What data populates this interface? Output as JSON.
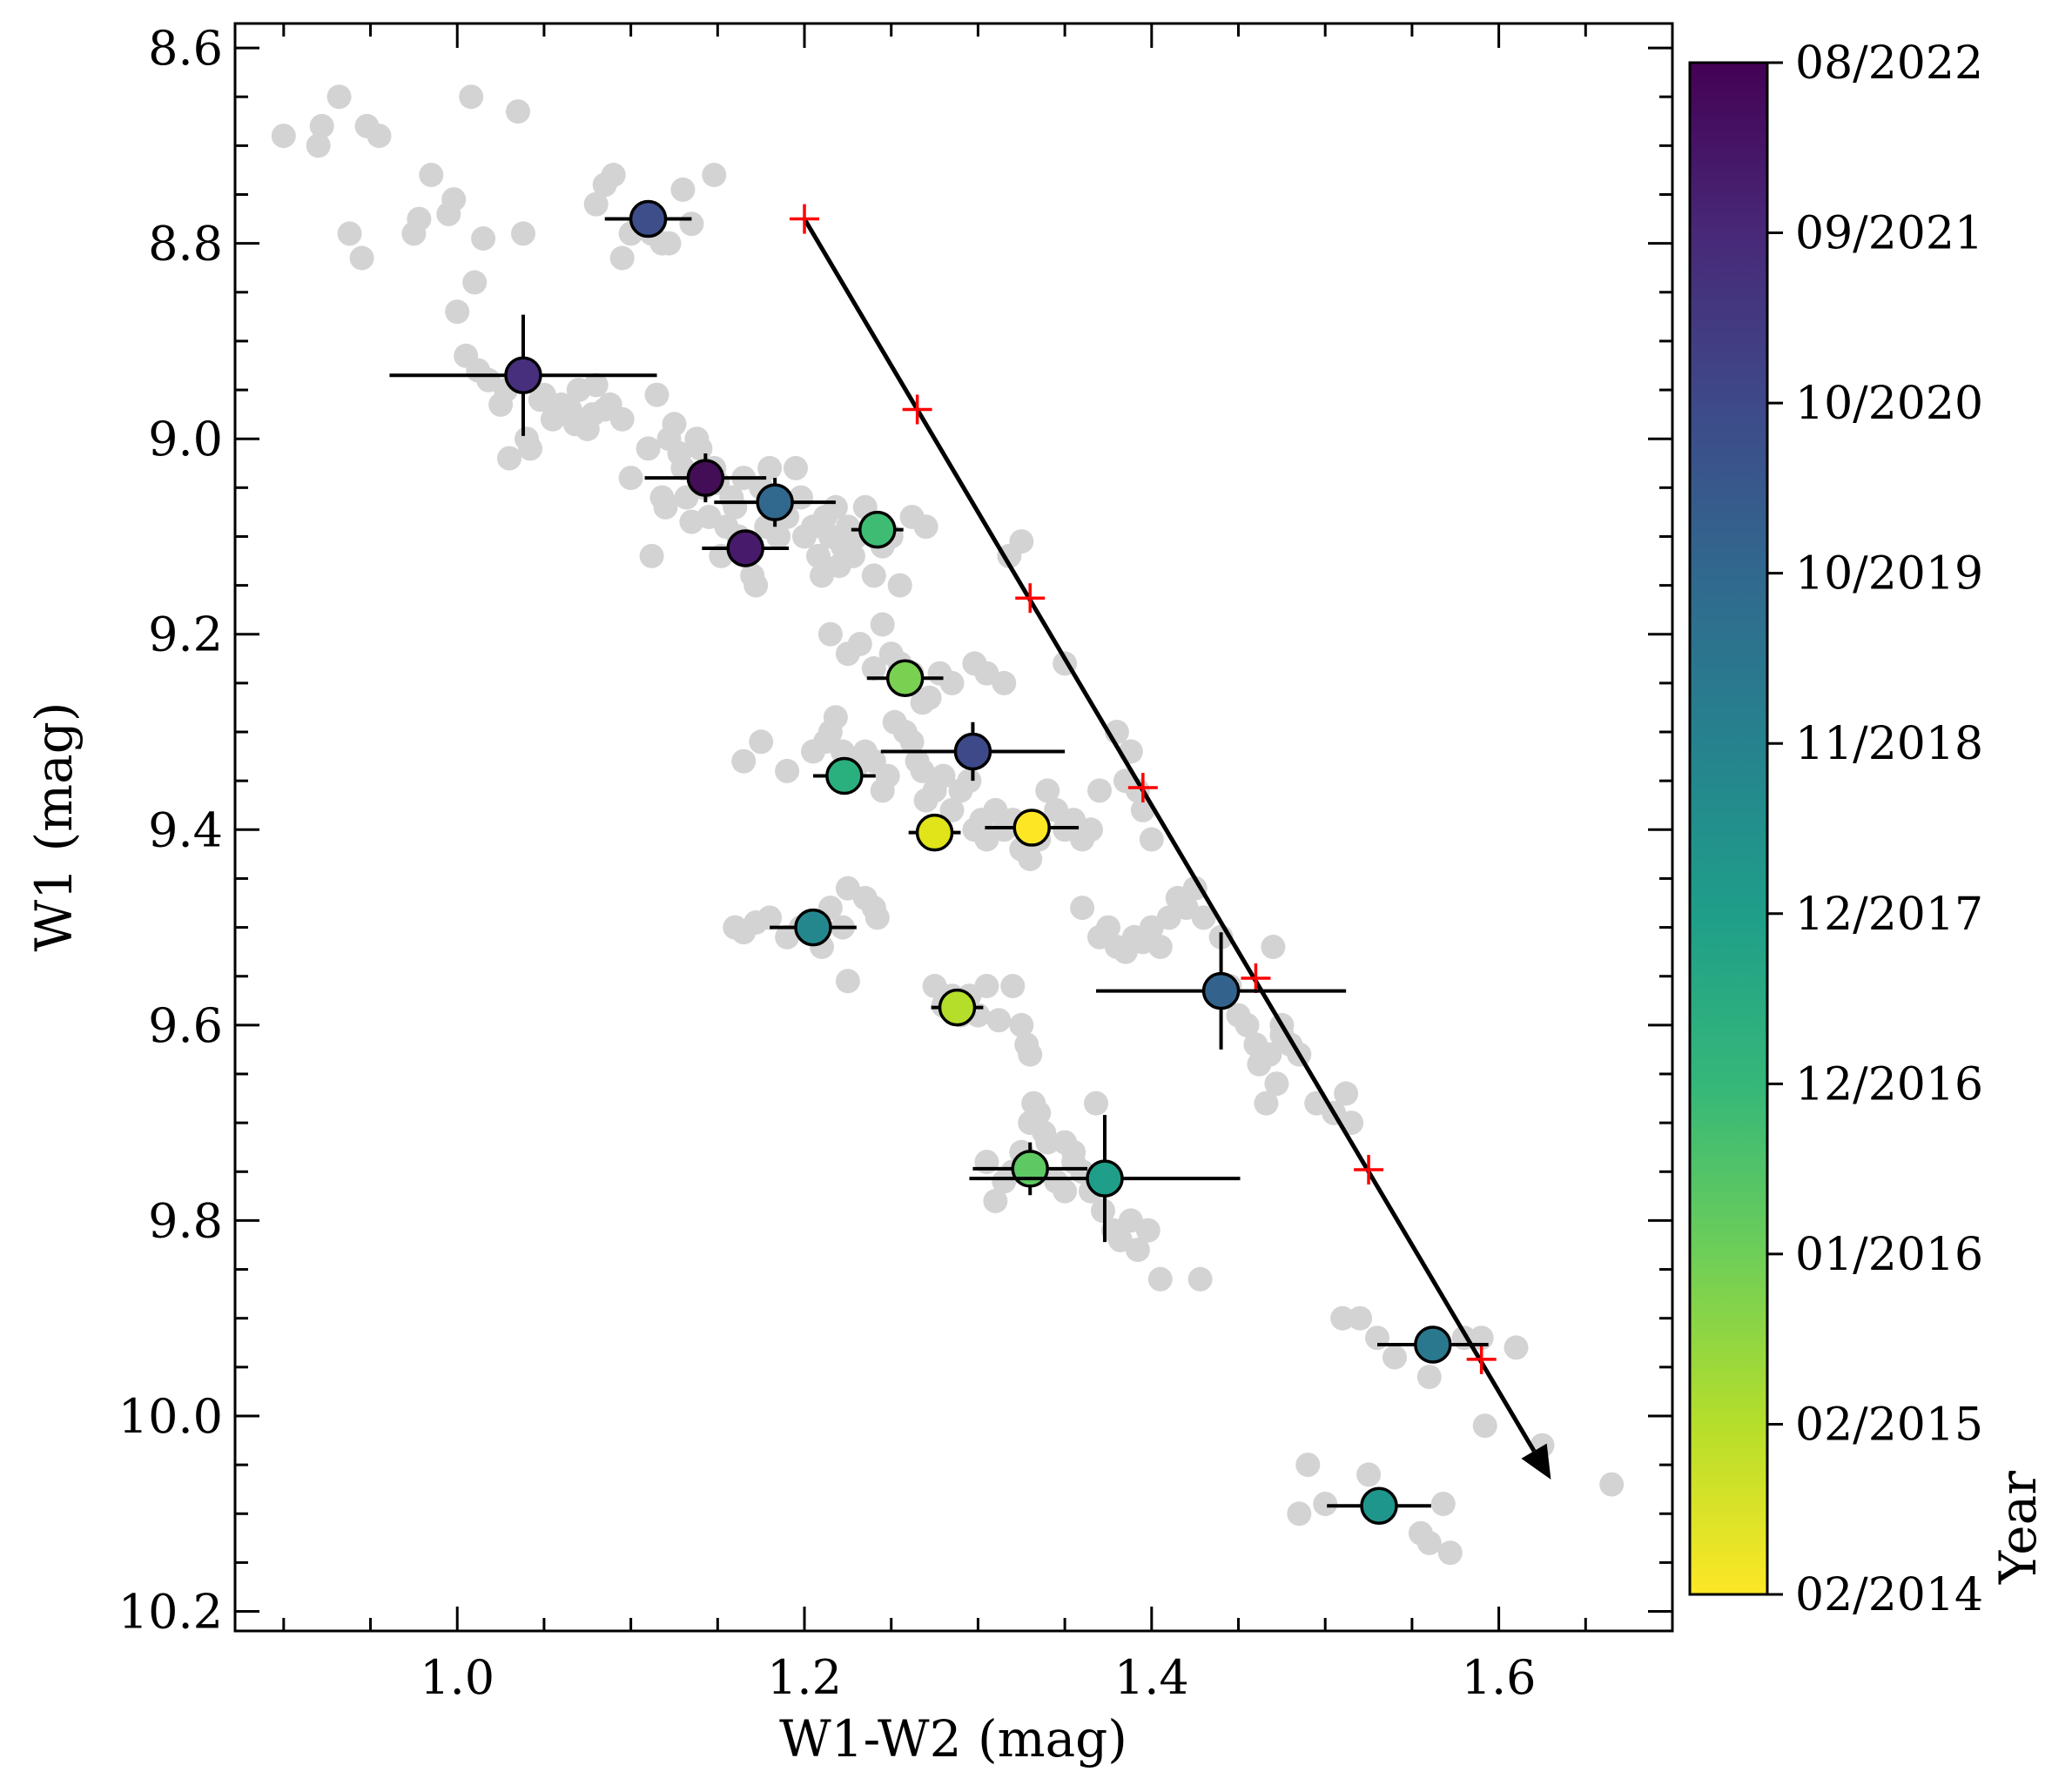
{
  "chart_data": {
    "type": "scatter",
    "xlabel": "W1-W2 (mag)",
    "ylabel": "W1 (mag)",
    "xlim": [
      0.872,
      1.7
    ],
    "ylim": [
      8.575,
      10.22
    ],
    "y_inverted": true,
    "x_ticks": [
      1.0,
      1.2,
      1.4,
      1.6
    ],
    "x_tick_labels": [
      "1.0",
      "1.2",
      "1.4",
      "1.6"
    ],
    "y_ticks": [
      8.6,
      8.8,
      9.0,
      9.2,
      9.4,
      9.6,
      9.8,
      10.0,
      10.2
    ],
    "y_tick_labels": [
      "8.6",
      "8.8",
      "9.0",
      "9.2",
      "9.4",
      "9.6",
      "9.8",
      "10.0",
      "10.2"
    ],
    "grid": false,
    "background_points_color": "#d3d3d3",
    "background_points": [
      [
        0.9,
        8.69
      ],
      [
        0.92,
        8.7
      ],
      [
        0.922,
        8.68
      ],
      [
        0.932,
        8.65
      ],
      [
        0.938,
        8.79
      ],
      [
        0.945,
        8.815
      ],
      [
        0.948,
        8.68
      ],
      [
        0.955,
        8.69
      ],
      [
        0.975,
        8.79
      ],
      [
        0.978,
        8.775
      ],
      [
        0.985,
        8.73
      ],
      [
        0.995,
        8.77
      ],
      [
        0.998,
        8.755
      ],
      [
        1.0,
        8.87
      ],
      [
        1.005,
        8.915
      ],
      [
        1.008,
        8.65
      ],
      [
        1.01,
        8.84
      ],
      [
        1.012,
        8.93
      ],
      [
        1.015,
        8.795
      ],
      [
        1.018,
        8.94
      ],
      [
        1.025,
        8.965
      ],
      [
        1.028,
        8.95
      ],
      [
        1.035,
        8.665
      ],
      [
        1.038,
        8.79
      ],
      [
        1.03,
        9.02
      ],
      [
        1.04,
        9.0
      ],
      [
        1.042,
        9.01
      ],
      [
        1.048,
        8.96
      ],
      [
        1.05,
        8.955
      ],
      [
        1.055,
        8.98
      ],
      [
        1.06,
        8.965
      ],
      [
        1.065,
        8.97
      ],
      [
        1.068,
        8.985
      ],
      [
        1.07,
        8.95
      ],
      [
        1.075,
        8.99
      ],
      [
        1.078,
        8.975
      ],
      [
        1.08,
        8.945
      ],
      [
        1.085,
        8.97
      ],
      [
        1.088,
        8.965
      ],
      [
        1.095,
        8.98
      ],
      [
        1.08,
        8.76
      ],
      [
        1.085,
        8.74
      ],
      [
        1.09,
        8.73
      ],
      [
        1.1,
        8.79
      ],
      [
        1.105,
        8.78
      ],
      [
        1.108,
        8.77
      ],
      [
        1.112,
        8.79
      ],
      [
        1.118,
        8.8
      ],
      [
        1.122,
        8.8
      ],
      [
        1.13,
        8.745
      ],
      [
        1.135,
        8.78
      ],
      [
        1.148,
        8.73
      ],
      [
        1.095,
        8.815
      ],
      [
        1.1,
        9.04
      ],
      [
        1.11,
        9.01
      ],
      [
        1.112,
        9.12
      ],
      [
        1.115,
        8.955
      ],
      [
        1.118,
        9.06
      ],
      [
        1.12,
        9.07
      ],
      [
        1.122,
        9.0
      ],
      [
        1.125,
        8.985
      ],
      [
        1.128,
        9.015
      ],
      [
        1.13,
        9.03
      ],
      [
        1.132,
        9.06
      ],
      [
        1.135,
        9.085
      ],
      [
        1.138,
        9.0
      ],
      [
        1.14,
        9.01
      ],
      [
        1.142,
        9.05
      ],
      [
        1.145,
        9.08
      ],
      [
        1.148,
        9.03
      ],
      [
        1.15,
        9.045
      ],
      [
        1.152,
        9.12
      ],
      [
        1.155,
        9.09
      ],
      [
        1.158,
        9.06
      ],
      [
        1.16,
        9.07
      ],
      [
        1.162,
        9.1
      ],
      [
        1.165,
        9.04
      ],
      [
        1.168,
        9.115
      ],
      [
        1.17,
        9.14
      ],
      [
        1.172,
        9.15
      ],
      [
        1.175,
        9.05
      ],
      [
        1.178,
        9.09
      ],
      [
        1.18,
        9.03
      ],
      [
        1.185,
        9.1
      ],
      [
        1.19,
        9.08
      ],
      [
        1.195,
        9.03
      ],
      [
        1.198,
        9.06
      ],
      [
        1.2,
        9.1
      ],
      [
        1.205,
        9.09
      ],
      [
        1.208,
        9.12
      ],
      [
        1.21,
        9.14
      ],
      [
        1.212,
        9.08
      ],
      [
        1.215,
        9.1
      ],
      [
        1.218,
        9.07
      ],
      [
        1.22,
        9.13
      ],
      [
        1.222,
        9.11
      ],
      [
        1.225,
        9.09
      ],
      [
        1.228,
        9.12
      ],
      [
        1.23,
        9.1
      ],
      [
        1.235,
        9.07
      ],
      [
        1.24,
        9.14
      ],
      [
        1.245,
        9.11
      ],
      [
        1.25,
        9.1
      ],
      [
        1.255,
        9.15
      ],
      [
        1.262,
        9.08
      ],
      [
        1.27,
        9.09
      ],
      [
        1.215,
        9.2
      ],
      [
        1.225,
        9.22
      ],
      [
        1.232,
        9.21
      ],
      [
        1.24,
        9.235
      ],
      [
        1.245,
        9.19
      ],
      [
        1.25,
        9.22
      ],
      [
        1.255,
        9.23
      ],
      [
        1.262,
        9.24
      ],
      [
        1.268,
        9.27
      ],
      [
        1.272,
        9.265
      ],
      [
        1.278,
        9.24
      ],
      [
        1.285,
        9.25
      ],
      [
        1.298,
        9.23
      ],
      [
        1.305,
        9.24
      ],
      [
        1.315,
        9.25
      ],
      [
        1.325,
        9.105
      ],
      [
        1.318,
        9.12
      ],
      [
        1.212,
        9.31
      ],
      [
        1.215,
        9.3
      ],
      [
        1.218,
        9.285
      ],
      [
        1.222,
        9.32
      ],
      [
        1.225,
        9.345
      ],
      [
        1.23,
        9.335
      ],
      [
        1.235,
        9.32
      ],
      [
        1.24,
        9.33
      ],
      [
        1.245,
        9.36
      ],
      [
        1.248,
        9.345
      ],
      [
        1.252,
        9.29
      ],
      [
        1.258,
        9.3
      ],
      [
        1.262,
        9.31
      ],
      [
        1.265,
        9.33
      ],
      [
        1.268,
        9.34
      ],
      [
        1.27,
        9.37
      ],
      [
        1.275,
        9.36
      ],
      [
        1.28,
        9.345
      ],
      [
        1.285,
        9.38
      ],
      [
        1.29,
        9.36
      ],
      [
        1.295,
        9.35
      ],
      [
        1.298,
        9.4
      ],
      [
        1.302,
        9.39
      ],
      [
        1.305,
        9.41
      ],
      [
        1.31,
        9.38
      ],
      [
        1.315,
        9.4
      ],
      [
        1.32,
        9.39
      ],
      [
        1.325,
        9.42
      ],
      [
        1.33,
        9.43
      ],
      [
        1.335,
        9.41
      ],
      [
        1.34,
        9.36
      ],
      [
        1.345,
        9.38
      ],
      [
        1.35,
        9.4
      ],
      [
        1.355,
        9.39
      ],
      [
        1.36,
        9.41
      ],
      [
        1.365,
        9.4
      ],
      [
        1.37,
        9.36
      ],
      [
        1.38,
        9.3
      ],
      [
        1.385,
        9.35
      ],
      [
        1.388,
        9.32
      ],
      [
        1.392,
        9.36
      ],
      [
        1.395,
        9.38
      ],
      [
        1.4,
        9.41
      ],
      [
        1.35,
        9.23
      ],
      [
        1.165,
        9.33
      ],
      [
        1.175,
        9.31
      ],
      [
        1.19,
        9.34
      ],
      [
        1.205,
        9.32
      ],
      [
        1.16,
        9.5
      ],
      [
        1.165,
        9.505
      ],
      [
        1.172,
        9.495
      ],
      [
        1.18,
        9.49
      ],
      [
        1.19,
        9.51
      ],
      [
        1.198,
        9.5
      ],
      [
        1.21,
        9.52
      ],
      [
        1.215,
        9.48
      ],
      [
        1.222,
        9.5
      ],
      [
        1.225,
        9.46
      ],
      [
        1.235,
        9.47
      ],
      [
        1.24,
        9.48
      ],
      [
        1.242,
        9.49
      ],
      [
        1.225,
        9.555
      ],
      [
        1.275,
        9.56
      ],
      [
        1.28,
        9.58
      ],
      [
        1.285,
        9.57
      ],
      [
        1.29,
        9.59
      ],
      [
        1.295,
        9.57
      ],
      [
        1.3,
        9.59
      ],
      [
        1.305,
        9.56
      ],
      [
        1.312,
        9.595
      ],
      [
        1.32,
        9.56
      ],
      [
        1.325,
        9.6
      ],
      [
        1.328,
        9.62
      ],
      [
        1.33,
        9.63
      ],
      [
        1.36,
        9.48
      ],
      [
        1.37,
        9.51
      ],
      [
        1.375,
        9.5
      ],
      [
        1.38,
        9.52
      ],
      [
        1.385,
        9.525
      ],
      [
        1.39,
        9.51
      ],
      [
        1.395,
        9.515
      ],
      [
        1.4,
        9.5
      ],
      [
        1.405,
        9.52
      ],
      [
        1.41,
        9.49
      ],
      [
        1.415,
        9.47
      ],
      [
        1.42,
        9.48
      ],
      [
        1.425,
        9.46
      ],
      [
        1.43,
        9.49
      ],
      [
        1.44,
        9.51
      ],
      [
        1.445,
        9.56
      ],
      [
        1.45,
        9.59
      ],
      [
        1.455,
        9.6
      ],
      [
        1.46,
        9.62
      ],
      [
        1.462,
        9.64
      ],
      [
        1.466,
        9.68
      ],
      [
        1.468,
        9.63
      ],
      [
        1.472,
        9.66
      ],
      [
        1.475,
        9.61
      ],
      [
        1.48,
        9.62
      ],
      [
        1.485,
        9.63
      ],
      [
        1.47,
        9.52
      ],
      [
        1.475,
        9.6
      ],
      [
        1.305,
        9.74
      ],
      [
        1.31,
        9.78
      ],
      [
        1.315,
        9.76
      ],
      [
        1.32,
        9.75
      ],
      [
        1.325,
        9.73
      ],
      [
        1.33,
        9.7
      ],
      [
        1.332,
        9.68
      ],
      [
        1.335,
        9.69
      ],
      [
        1.338,
        9.71
      ],
      [
        1.34,
        9.72
      ],
      [
        1.345,
        9.76
      ],
      [
        1.35,
        9.77
      ],
      [
        1.355,
        9.73
      ],
      [
        1.36,
        9.75
      ],
      [
        1.365,
        9.77
      ],
      [
        1.368,
        9.68
      ],
      [
        1.372,
        9.79
      ],
      [
        1.378,
        9.81
      ],
      [
        1.382,
        9.82
      ],
      [
        1.388,
        9.8
      ],
      [
        1.392,
        9.83
      ],
      [
        1.398,
        9.81
      ],
      [
        1.405,
        9.86
      ],
      [
        1.428,
        9.86
      ],
      [
        1.35,
        9.72
      ],
      [
        1.355,
        9.74
      ],
      [
        1.495,
        9.68
      ],
      [
        1.505,
        9.69
      ],
      [
        1.512,
        9.67
      ],
      [
        1.515,
        9.7
      ],
      [
        1.51,
        9.9
      ],
      [
        1.52,
        9.9
      ],
      [
        1.53,
        9.92
      ],
      [
        1.54,
        9.94
      ],
      [
        1.56,
        9.96
      ],
      [
        1.58,
        9.92
      ],
      [
        1.59,
        9.92
      ],
      [
        1.61,
        9.93
      ],
      [
        1.592,
        10.01
      ],
      [
        1.625,
        10.03
      ],
      [
        1.665,
        10.07
      ],
      [
        1.49,
        10.05
      ],
      [
        1.485,
        10.1
      ],
      [
        1.5,
        10.09
      ],
      [
        1.525,
        10.06
      ],
      [
        1.555,
        10.12
      ],
      [
        1.56,
        10.13
      ],
      [
        1.568,
        10.09
      ],
      [
        1.572,
        10.14
      ]
    ],
    "colorbar": {
      "label": "Year",
      "colormap": "viridis (reversed: yellow = oldest, dark purple = newest)",
      "colors": [
        "#fde725",
        "#b5de2b",
        "#6ece58",
        "#35b779",
        "#1f9e89",
        "#26828e",
        "#31688e",
        "#3e4989",
        "#482878",
        "#440154"
      ],
      "tick_labels": [
        "02/2014",
        "02/2015",
        "01/2016",
        "12/2016",
        "12/2017",
        "11/2018",
        "10/2019",
        "10/2020",
        "09/2021",
        "08/2022"
      ]
    },
    "epoch_points": [
      {
        "x": 1.11,
        "y": 8.775,
        "xerr": 0.025,
        "yerr": 0.0,
        "color": "#3d4e8a"
      },
      {
        "x": 1.038,
        "y": 8.935,
        "xerr": 0.077,
        "yerr": 0.062,
        "color": "#472f7d"
      },
      {
        "x": 1.143,
        "y": 9.04,
        "xerr": 0.035,
        "yerr": 0.025,
        "color": "#440e57"
      },
      {
        "x": 1.183,
        "y": 9.065,
        "xerr": 0.035,
        "yerr": 0.025,
        "color": "#31688e"
      },
      {
        "x": 1.242,
        "y": 9.093,
        "xerr": 0.015,
        "yerr": 0.0,
        "color": "#3ebc74"
      },
      {
        "x": 1.166,
        "y": 9.112,
        "xerr": 0.025,
        "yerr": 0.0,
        "color": "#481a6c"
      },
      {
        "x": 1.258,
        "y": 9.245,
        "xerr": 0.022,
        "yerr": 0.0,
        "color": "#7ad151"
      },
      {
        "x": 1.297,
        "y": 9.32,
        "xerr": 0.053,
        "yerr": 0.03,
        "color": "#3e4989"
      },
      {
        "x": 1.223,
        "y": 9.345,
        "xerr": 0.018,
        "yerr": 0.0,
        "color": "#2ab07f"
      },
      {
        "x": 1.275,
        "y": 9.403,
        "xerr": 0.015,
        "yerr": 0.0,
        "color": "#e0e418"
      },
      {
        "x": 1.331,
        "y": 9.398,
        "xerr": 0.027,
        "yerr": 0.0,
        "color": "#fde725"
      },
      {
        "x": 1.205,
        "y": 9.5,
        "xerr": 0.025,
        "yerr": 0.0,
        "color": "#24878e"
      },
      {
        "x": 1.288,
        "y": 9.582,
        "xerr": 0.015,
        "yerr": 0.0,
        "color": "#b5de2b"
      },
      {
        "x": 1.44,
        "y": 9.565,
        "xerr": 0.072,
        "yerr": 0.06,
        "color": "#33638d"
      },
      {
        "x": 1.33,
        "y": 9.747,
        "xerr": 0.033,
        "yerr": 0.027,
        "color": "#5ec962"
      },
      {
        "x": 1.373,
        "y": 9.757,
        "xerr": 0.078,
        "yerr": 0.065,
        "color": "#1f9e89"
      },
      {
        "x": 1.562,
        "y": 9.927,
        "xerr": 0.032,
        "yerr": 0.0,
        "color": "#2a788e"
      },
      {
        "x": 1.531,
        "y": 10.092,
        "xerr": 0.03,
        "yerr": 0.0,
        "color": "#1f968b"
      }
    ],
    "arrow": {
      "color": "#000000",
      "from": [
        1.2,
        8.775
      ],
      "to": [
        1.63,
        10.065
      ],
      "marker_color": "#ff0000",
      "markers": [
        [
          1.2,
          8.775
        ],
        [
          1.265,
          8.97
        ],
        [
          1.33,
          9.163
        ],
        [
          1.395,
          9.357
        ],
        [
          1.46,
          9.552
        ],
        [
          1.525,
          9.748
        ],
        [
          1.59,
          9.942
        ]
      ]
    }
  }
}
